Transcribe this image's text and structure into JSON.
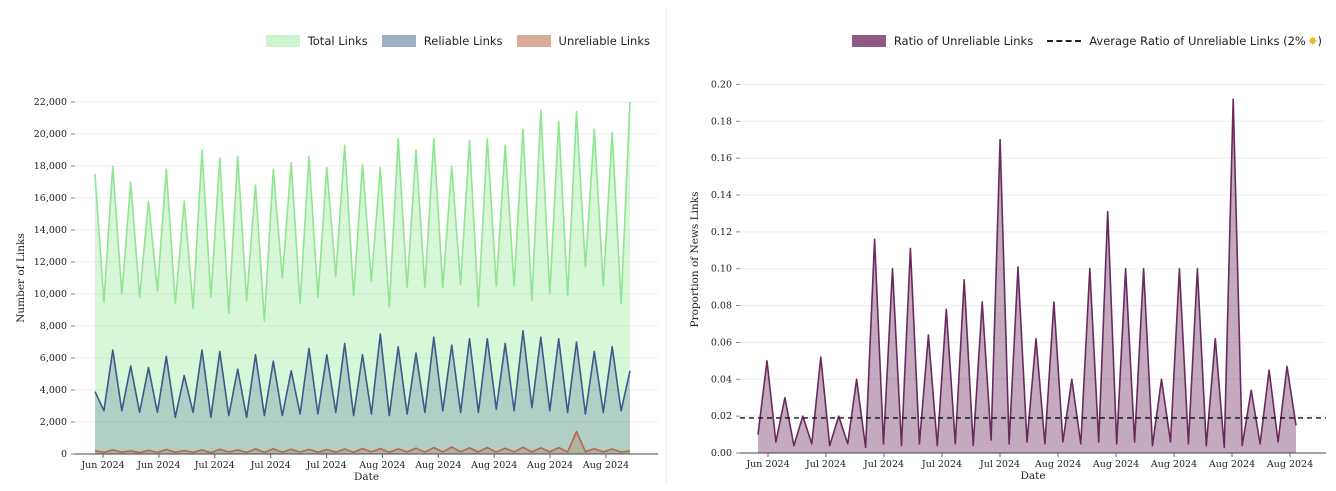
{
  "chart_data": [
    {
      "type": "area",
      "xlabel": "Date",
      "ylabel": "Number of Links",
      "ylim": [
        0,
        22000
      ],
      "yticks": [
        "0",
        "2,000",
        "4,000",
        "6,000",
        "8,000",
        "10,000",
        "12,000",
        "14,000",
        "16,000",
        "18,000",
        "20,000",
        "22,000"
      ],
      "xticks": [
        "Jun 2024",
        "Jun 2024",
        "Jul 2024",
        "Jul 2024",
        "Jul 2024",
        "Aug 2024",
        "Aug 2024",
        "Aug 2024",
        "Aug 2024",
        "Aug 2024"
      ],
      "grid": true,
      "legend_position": "top-right",
      "series": [
        {
          "name": "Total Links",
          "color": "#90e590",
          "values": [
            17500,
            9500,
            18000,
            10000,
            17000,
            9800,
            15800,
            10200,
            17800,
            9400,
            15800,
            9100,
            19000,
            9800,
            18500,
            8800,
            18600,
            9600,
            16800,
            8300,
            17800,
            11000,
            18200,
            9400,
            18600,
            9800,
            17900,
            11100,
            19300,
            9900,
            18100,
            10800,
            17900,
            9200,
            19700,
            10400,
            19000,
            10400,
            19700,
            10400,
            18000,
            10600,
            19600,
            9200,
            19700,
            10500,
            19300,
            10500,
            20300,
            9600,
            21500,
            10000,
            20800,
            9900,
            21400,
            11700,
            20300,
            10500,
            20100,
            9400,
            22000
          ]
        },
        {
          "name": "Reliable Links",
          "color": "#3d5a8c",
          "values": [
            3900,
            2700,
            6500,
            2700,
            5500,
            2600,
            5400,
            2600,
            6100,
            2300,
            4900,
            2600,
            6500,
            2300,
            6400,
            2400,
            5300,
            2300,
            6200,
            2400,
            5800,
            2400,
            5200,
            2500,
            6600,
            2500,
            6200,
            2600,
            6900,
            2400,
            6200,
            2500,
            7500,
            2400,
            6700,
            2500,
            6300,
            2600,
            7300,
            2700,
            6800,
            2600,
            7200,
            2600,
            7200,
            2800,
            6900,
            2700,
            7700,
            2900,
            7300,
            2700,
            7200,
            2600,
            7000,
            2500,
            6400,
            2600,
            6700,
            2700,
            5200
          ]
        },
        {
          "name": "Unreliable Links",
          "color": "#b5694a",
          "values": [
            200,
            100,
            260,
            110,
            200,
            80,
            230,
            100,
            280,
            110,
            220,
            100,
            260,
            80,
            300,
            120,
            260,
            100,
            320,
            100,
            330,
            110,
            300,
            120,
            290,
            110,
            280,
            120,
            310,
            110,
            340,
            130,
            340,
            110,
            320,
            130,
            360,
            120,
            400,
            130,
            430,
            140,
            380,
            130,
            400,
            120,
            360,
            130,
            420,
            130,
            380,
            130,
            400,
            130,
            1400,
            150,
            330,
            130,
            310,
            120,
            200
          ]
        }
      ]
    },
    {
      "type": "area",
      "xlabel": "Date",
      "ylabel": "Proportion of News Links",
      "ylim": [
        0,
        0.21
      ],
      "yticks": [
        "0.00",
        "0.02",
        "0.04",
        "0.06",
        "0.08",
        "0.10",
        "0.12",
        "0.14",
        "0.16",
        "0.18",
        "0.20"
      ],
      "xticks": [
        "Jun 2024",
        "Jul 2024",
        "Jul 2024",
        "Jul 2024",
        "Jul 2024",
        "Aug 2024",
        "Aug 2024",
        "Aug 2024",
        "Aug 2024",
        "Aug 2024"
      ],
      "grid": true,
      "legend_position": "top-right",
      "series": [
        {
          "name": "Ratio of Unreliable Links",
          "color": "#6b2a5e",
          "values": [
            0.01,
            0.05,
            0.006,
            0.03,
            0.004,
            0.02,
            0.005,
            0.052,
            0.004,
            0.02,
            0.005,
            0.04,
            0.003,
            0.116,
            0.005,
            0.1,
            0.004,
            0.111,
            0.005,
            0.064,
            0.004,
            0.078,
            0.005,
            0.094,
            0.004,
            0.082,
            0.007,
            0.17,
            0.005,
            0.101,
            0.006,
            0.062,
            0.005,
            0.082,
            0.006,
            0.04,
            0.005,
            0.1,
            0.006,
            0.131,
            0.005,
            0.1,
            0.006,
            0.1,
            0.004,
            0.04,
            0.006,
            0.1,
            0.005,
            0.1,
            0.004,
            0.062,
            0.003,
            0.192,
            0.004,
            0.034,
            0.005,
            0.045,
            0.006,
            0.047,
            0.015
          ]
        },
        {
          "name": "Average Ratio of Unreliable Links (2% 🌟)",
          "value": 0.019,
          "style": "dashed",
          "color": "#111111"
        }
      ]
    }
  ],
  "legends": {
    "left": [
      "Total Links",
      "Reliable Links",
      "Unreliable Links"
    ],
    "right_series": "Ratio of Unreliable Links",
    "right_avg": "Average Ratio of Unreliable Links (2%",
    "right_avg_icon": "star-icon",
    "right_avg_close": ")"
  }
}
